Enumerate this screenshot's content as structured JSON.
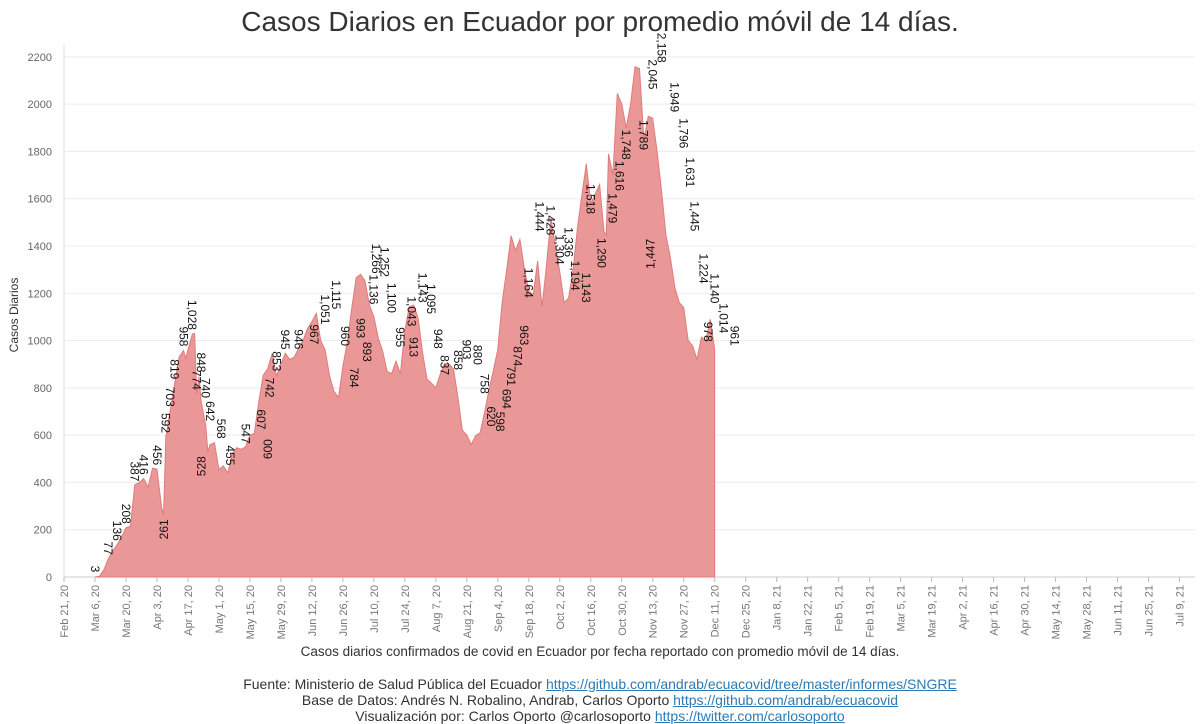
{
  "chart_data": {
    "type": "area",
    "title": "Casos Diarios en Ecuador por promedio móvil de 14 días.",
    "ylabel": "Casos Diarios",
    "xlabel": "Casos diarios confirmados de covid en Ecuador por fecha reportado con promedio móvil de 14 días.",
    "ylim": [
      0,
      2250
    ],
    "yticks": [
      0,
      200,
      400,
      600,
      800,
      1000,
      1200,
      1400,
      1600,
      1800,
      2000,
      2200
    ],
    "grid": true,
    "color": "#e88c8c",
    "x_tick_labels": [
      "Feb 21, 20",
      "Mar 6, 20",
      "Mar 20, 20",
      "Apr 3, 20",
      "Apr 17, 20",
      "May 1, 20",
      "May 15, 20",
      "May 29, 20",
      "Jun 12, 20",
      "Jun 26, 20",
      "Jul 10, 20",
      "Jul 24, 20",
      "Aug 7, 20",
      "Aug 21, 20",
      "Sep 4, 20",
      "Sep 18, 20",
      "Oct 2, 20",
      "Oct 16, 20",
      "Oct 30, 20",
      "Nov 13, 20",
      "Nov 27, 20",
      "Dec 11, 20",
      "Dec 25, 20",
      "Jan 8, 21",
      "Jan 22, 21",
      "Feb 5, 21",
      "Feb 19, 21",
      "Mar 5, 21",
      "Mar 19, 21",
      "Apr 2, 21",
      "Apr 16, 21",
      "Apr 30, 21",
      "May 14, 21",
      "May 28, 21",
      "Jun 11, 21",
      "Jun 25, 21",
      "Jul 9, 21"
    ],
    "series": [
      {
        "name": "Casos Diarios (promedio móvil 14 días)",
        "points": [
          [
            14,
            0
          ],
          [
            16,
            3
          ],
          [
            18,
            30
          ],
          [
            20,
            77
          ],
          [
            22,
            110
          ],
          [
            24,
            136
          ],
          [
            26,
            170
          ],
          [
            28,
            208
          ],
          [
            30,
            215
          ],
          [
            32,
            390
          ],
          [
            34,
            400
          ],
          [
            36,
            416
          ],
          [
            38,
            380
          ],
          [
            40,
            460
          ],
          [
            42,
            456
          ],
          [
            44,
            300
          ],
          [
            45,
            261
          ],
          [
            46,
            592
          ],
          [
            48,
            703
          ],
          [
            50,
            819
          ],
          [
            52,
            930
          ],
          [
            54,
            958
          ],
          [
            55,
            925
          ],
          [
            56,
            960
          ],
          [
            58,
            1028
          ],
          [
            59,
            1030
          ],
          [
            60,
            774
          ],
          [
            61,
            848
          ],
          [
            62,
            740
          ],
          [
            64,
            642
          ],
          [
            65,
            528
          ],
          [
            66,
            560
          ],
          [
            68,
            568
          ],
          [
            70,
            455
          ],
          [
            72,
            470
          ],
          [
            74,
            440
          ],
          [
            76,
            520
          ],
          [
            78,
            547
          ],
          [
            80,
            540
          ],
          [
            82,
            550
          ],
          [
            84,
            600
          ],
          [
            86,
            607
          ],
          [
            88,
            742
          ],
          [
            90,
            853
          ],
          [
            92,
            880
          ],
          [
            94,
            945
          ],
          [
            96,
            850
          ],
          [
            98,
            900
          ],
          [
            100,
            946
          ],
          [
            102,
            920
          ],
          [
            104,
            930
          ],
          [
            106,
            967
          ],
          [
            108,
            1000
          ],
          [
            110,
            1051
          ],
          [
            112,
            1080
          ],
          [
            114,
            1115
          ],
          [
            116,
            1000
          ],
          [
            118,
            960
          ],
          [
            120,
            850
          ],
          [
            122,
            784
          ],
          [
            124,
            760
          ],
          [
            126,
            893
          ],
          [
            128,
            993
          ],
          [
            130,
            1136
          ],
          [
            132,
            1266
          ],
          [
            134,
            1280
          ],
          [
            136,
            1252
          ],
          [
            138,
            1150
          ],
          [
            140,
            1100
          ],
          [
            142,
            1010
          ],
          [
            144,
            955
          ],
          [
            146,
            870
          ],
          [
            148,
            860
          ],
          [
            150,
            913
          ],
          [
            152,
            860
          ],
          [
            154,
            1043
          ],
          [
            156,
            1143
          ],
          [
            158,
            1150
          ],
          [
            160,
            1095
          ],
          [
            162,
            948
          ],
          [
            164,
            837
          ],
          [
            166,
            820
          ],
          [
            168,
            800
          ],
          [
            170,
            858
          ],
          [
            172,
            903
          ],
          [
            174,
            900
          ],
          [
            176,
            880
          ],
          [
            178,
            758
          ],
          [
            180,
            620
          ],
          [
            182,
            600
          ],
          [
            184,
            560
          ],
          [
            186,
            598
          ],
          [
            188,
            610
          ],
          [
            190,
            694
          ],
          [
            192,
            791
          ],
          [
            194,
            874
          ],
          [
            196,
            963
          ],
          [
            198,
            1164
          ],
          [
            200,
            1300
          ],
          [
            202,
            1444
          ],
          [
            204,
            1380
          ],
          [
            206,
            1428
          ],
          [
            208,
            1304
          ],
          [
            210,
            1210
          ],
          [
            212,
            1194
          ],
          [
            214,
            1336
          ],
          [
            216,
            1143
          ],
          [
            218,
            1320
          ],
          [
            220,
            1518
          ],
          [
            222,
            1400
          ],
          [
            224,
            1290
          ],
          [
            226,
            1160
          ],
          [
            228,
            1180
          ],
          [
            230,
            1300
          ],
          [
            232,
            1479
          ],
          [
            234,
            1616
          ],
          [
            236,
            1748
          ],
          [
            238,
            1580
          ],
          [
            240,
            1620
          ],
          [
            242,
            1660
          ],
          [
            244,
            1460
          ],
          [
            245,
            1447
          ],
          [
            246,
            1789
          ],
          [
            248,
            1700
          ],
          [
            250,
            2045
          ],
          [
            252,
            2000
          ],
          [
            254,
            1900
          ],
          [
            256,
            2000
          ],
          [
            258,
            2158
          ],
          [
            260,
            2150
          ],
          [
            262,
            1850
          ],
          [
            264,
            1949
          ],
          [
            266,
            1940
          ],
          [
            268,
            1796
          ],
          [
            270,
            1631
          ],
          [
            272,
            1445
          ],
          [
            274,
            1350
          ],
          [
            276,
            1224
          ],
          [
            278,
            1160
          ],
          [
            280,
            1140
          ],
          [
            282,
            1000
          ],
          [
            284,
            978
          ],
          [
            286,
            920
          ],
          [
            288,
            1014
          ],
          [
            290,
            1000
          ],
          [
            292,
            1090
          ],
          [
            294,
            961
          ]
        ]
      }
    ],
    "data_labels": [
      {
        "i": 14,
        "v": 3,
        "text": "3"
      },
      {
        "i": 20,
        "v": 77,
        "text": "77"
      },
      {
        "i": 24,
        "v": 136,
        "text": "136"
      },
      {
        "i": 28,
        "v": 208,
        "text": "208"
      },
      {
        "i": 32,
        "v": 387,
        "text": "387"
      },
      {
        "i": 36,
        "v": 416,
        "text": "416"
      },
      {
        "i": 42,
        "v": 456,
        "text": "456"
      },
      {
        "i": 45,
        "v": 261,
        "text": "261",
        "below": true
      },
      {
        "i": 46,
        "v": 592,
        "text": "592"
      },
      {
        "i": 48,
        "v": 703,
        "text": "703"
      },
      {
        "i": 50,
        "v": 819,
        "text": "819"
      },
      {
        "i": 54,
        "v": 958,
        "text": "958"
      },
      {
        "i": 58,
        "v": 1028,
        "text": "1,028"
      },
      {
        "i": 60,
        "v": 774,
        "text": "774"
      },
      {
        "i": 62,
        "v": 848,
        "text": "848"
      },
      {
        "i": 64,
        "v": 740,
        "text": "740"
      },
      {
        "i": 66,
        "v": 642,
        "text": "642"
      },
      {
        "i": 62,
        "v": 528,
        "text": "528",
        "below": true
      },
      {
        "i": 71,
        "v": 568,
        "text": "568"
      },
      {
        "i": 75,
        "v": 455,
        "text": "455"
      },
      {
        "i": 82,
        "v": 547,
        "text": "547"
      },
      {
        "i": 89,
        "v": 607,
        "text": "607"
      },
      {
        "i": 92,
        "v": 600,
        "text": "600",
        "below": true
      },
      {
        "i": 93,
        "v": 742,
        "text": "742"
      },
      {
        "i": 96,
        "v": 853,
        "text": "853"
      },
      {
        "i": 100,
        "v": 945,
        "text": "945"
      },
      {
        "i": 106,
        "v": 946,
        "text": "946"
      },
      {
        "i": 113,
        "v": 967,
        "text": "967"
      },
      {
        "i": 118,
        "v": 1051,
        "text": "1,051"
      },
      {
        "i": 123,
        "v": 1115,
        "text": "1,115"
      },
      {
        "i": 127,
        "v": 960,
        "text": "960"
      },
      {
        "i": 131,
        "v": 784,
        "text": "784"
      },
      {
        "i": 134,
        "v": 993,
        "text": "993"
      },
      {
        "i": 137,
        "v": 893,
        "text": "893"
      },
      {
        "i": 140,
        "v": 1136,
        "text": "1,136"
      },
      {
        "i": 141,
        "v": 1266,
        "text": "1,266"
      },
      {
        "i": 145,
        "v": 1252,
        "text": "1,252"
      },
      {
        "i": 148,
        "v": 1100,
        "text": "1,100"
      },
      {
        "i": 152,
        "v": 955,
        "text": "955"
      },
      {
        "i": 158,
        "v": 913,
        "text": "913"
      },
      {
        "i": 157,
        "v": 1043,
        "text": "1,043"
      },
      {
        "i": 162,
        "v": 1143,
        "text": "1,143"
      },
      {
        "i": 166,
        "v": 1095,
        "text": "1,095"
      },
      {
        "i": 169,
        "v": 948,
        "text": "948"
      },
      {
        "i": 172,
        "v": 837,
        "text": "837"
      },
      {
        "i": 178,
        "v": 858,
        "text": "858"
      },
      {
        "i": 182,
        "v": 903,
        "text": "903"
      },
      {
        "i": 187,
        "v": 880,
        "text": "880"
      },
      {
        "i": 190,
        "v": 758,
        "text": "758"
      },
      {
        "i": 193,
        "v": 620,
        "text": "620"
      },
      {
        "i": 197,
        "v": 598,
        "text": "598"
      },
      {
        "i": 200,
        "v": 694,
        "text": "694"
      },
      {
        "i": 202,
        "v": 791,
        "text": "791"
      },
      {
        "i": 205,
        "v": 874,
        "text": "874"
      },
      {
        "i": 208,
        "v": 963,
        "text": "963"
      },
      {
        "i": 210,
        "v": 1164,
        "text": "1,164"
      },
      {
        "i": 215,
        "v": 1444,
        "text": "1,444"
      },
      {
        "i": 220,
        "v": 1428,
        "text": "1,428"
      },
      {
        "i": 224,
        "v": 1304,
        "text": "1,304"
      },
      {
        "i": 228,
        "v": 1336,
        "text": "1,336"
      },
      {
        "i": 231,
        "v": 1194,
        "text": "1,194"
      },
      {
        "i": 236,
        "v": 1143,
        "text": "1,143"
      },
      {
        "i": 238,
        "v": 1518,
        "text": "1,518"
      },
      {
        "i": 243,
        "v": 1290,
        "text": "1,290"
      },
      {
        "i": 248,
        "v": 1479,
        "text": "1,479"
      },
      {
        "i": 251,
        "v": 1616,
        "text": "1,616"
      },
      {
        "i": 254,
        "v": 1748,
        "text": "1,748"
      },
      {
        "i": 262,
        "v": 1789,
        "text": "1,789"
      },
      {
        "i": 265,
        "v": 1447,
        "text": "1,447",
        "below": true
      },
      {
        "i": 266,
        "v": 2045,
        "text": "2,045"
      },
      {
        "i": 270,
        "v": 2158,
        "text": "2,158"
      },
      {
        "i": 276,
        "v": 1949,
        "text": "1,949"
      },
      {
        "i": 280,
        "v": 1796,
        "text": "1,796"
      },
      {
        "i": 283,
        "v": 1631,
        "text": "1,631"
      },
      {
        "i": 285,
        "v": 1445,
        "text": "1,445"
      },
      {
        "i": 289,
        "v": 1224,
        "text": "1,224"
      },
      {
        "i": 294,
        "v": 1140,
        "text": "1,140"
      },
      {
        "i": 291,
        "v": 978,
        "text": "978"
      },
      {
        "i": 298,
        "v": 1014,
        "text": "1,014"
      },
      {
        "i": 303,
        "v": 961,
        "text": "961"
      }
    ]
  },
  "footer": {
    "source_prefix": "Fuente: Ministerio de Salud Pública del Ecuador ",
    "source_link": "https://github.com/andrab/ecuacovid/tree/master/informes/SNGRE",
    "db_prefix": "Base de Datos: Andrés N. Robalino, Andrab, Carlos Oporto ",
    "db_link": "https://github.com/andrab/ecuacovid",
    "viz_prefix": "Visualización por: Carlos Oporto @carlosoporto ",
    "viz_link": "https://twitter.com/carlosoporto"
  }
}
